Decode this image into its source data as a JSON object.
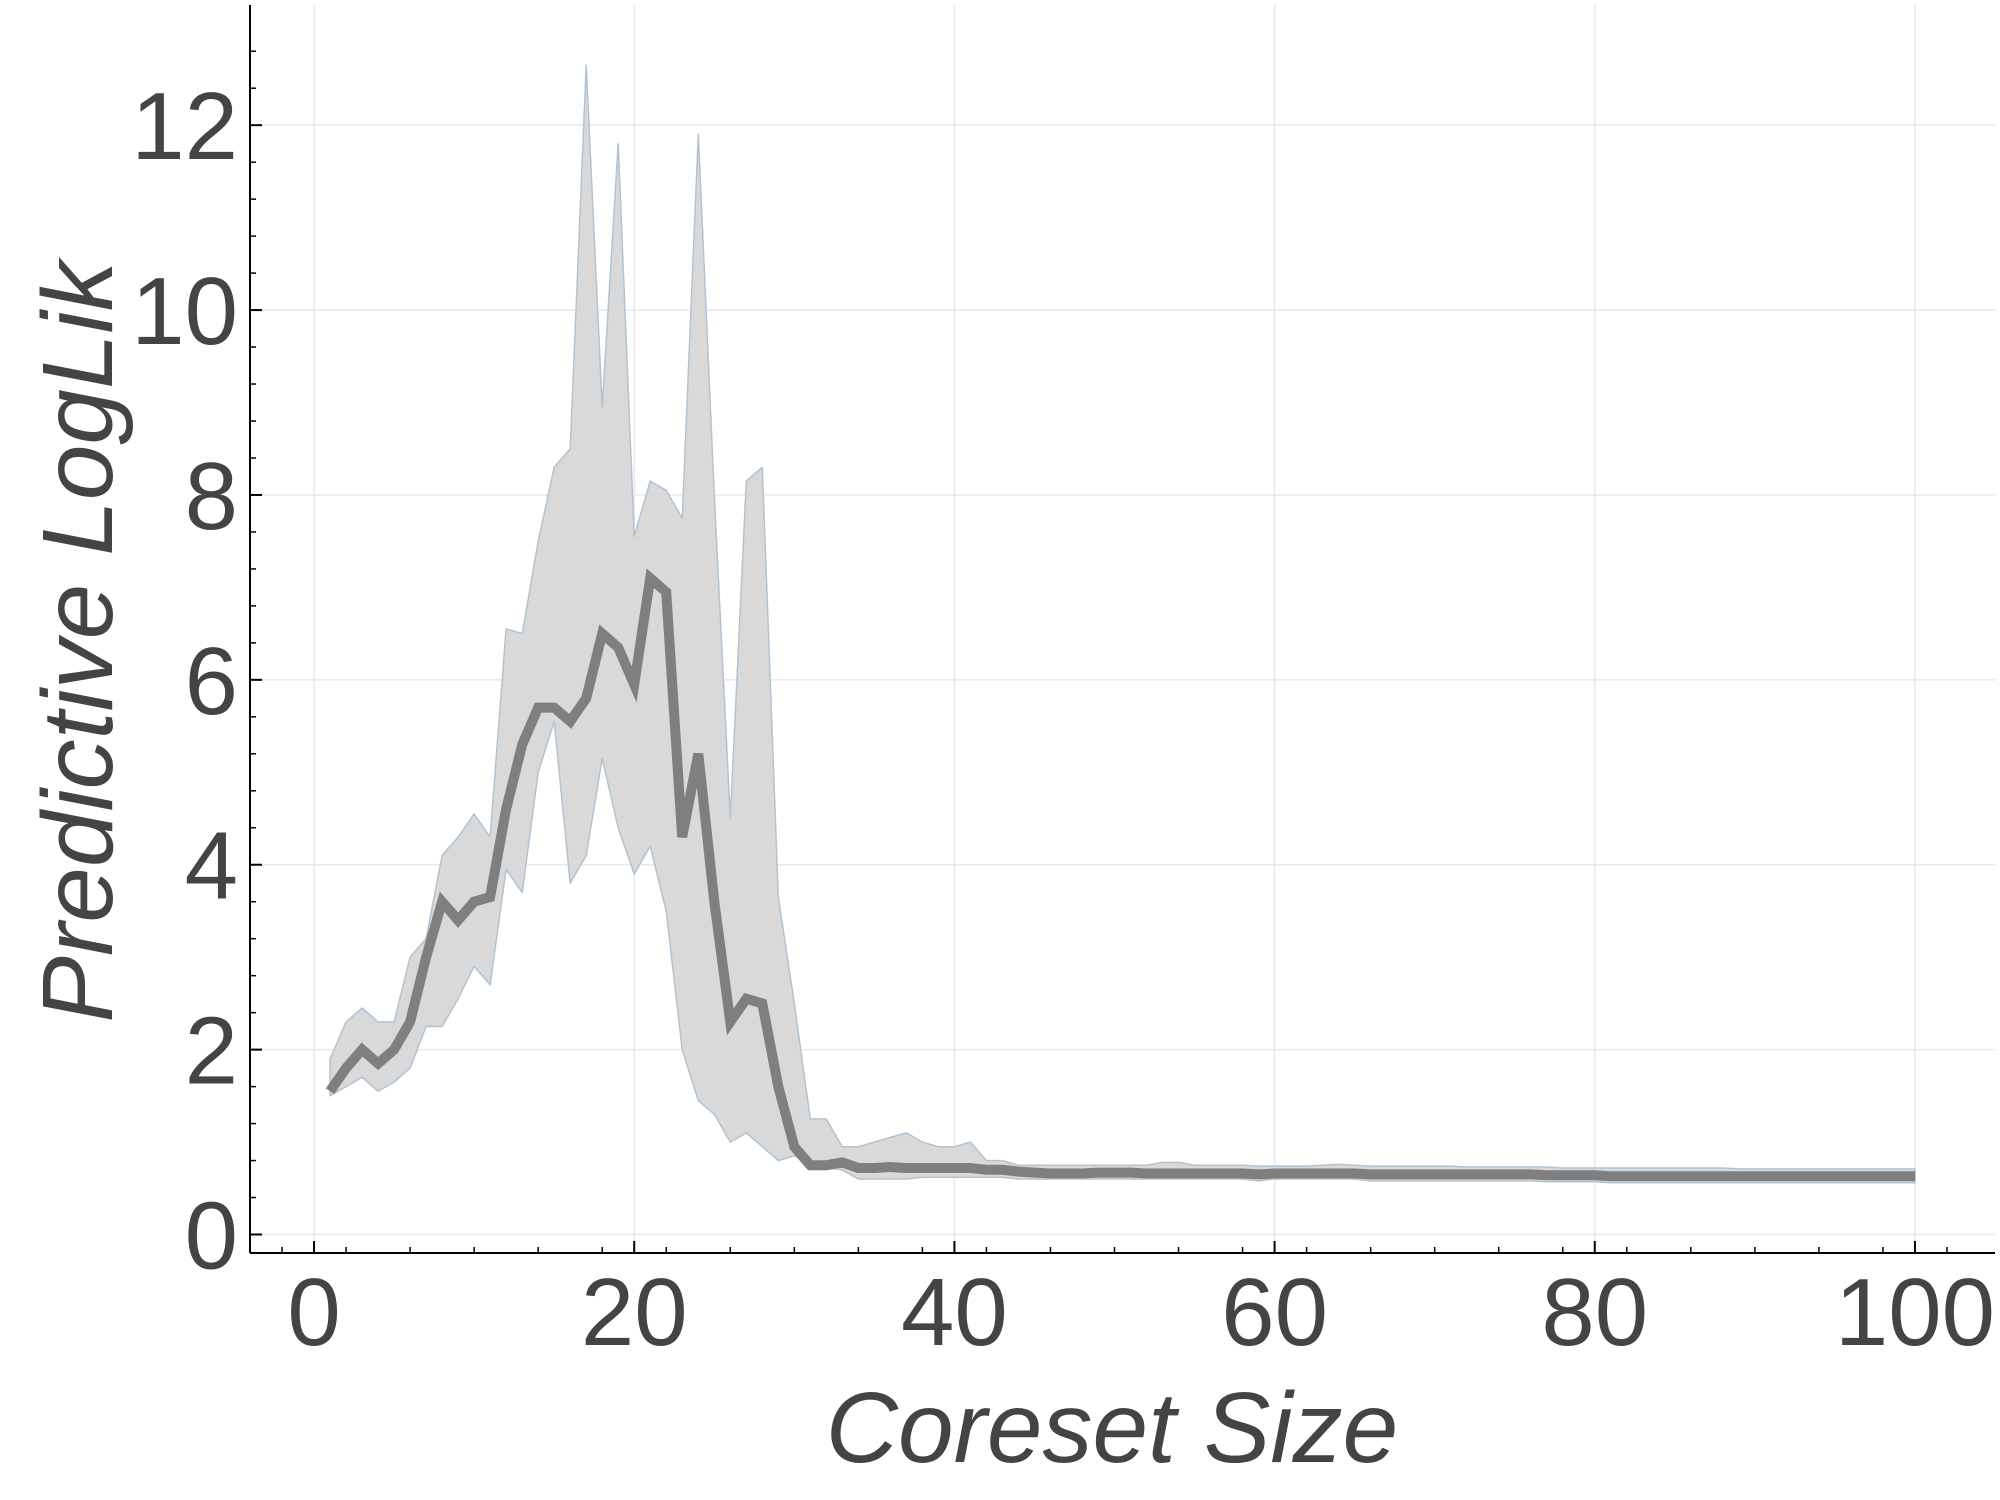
{
  "chart_data": {
    "type": "line",
    "title": "",
    "xlabel": "Coreset Size",
    "ylabel": "Predictive LogLik",
    "xlim": [
      -4,
      105
    ],
    "ylim": [
      -0.2,
      13.3
    ],
    "xticks": [
      0,
      20,
      40,
      60,
      80,
      100
    ],
    "yticks": [
      0,
      2,
      4,
      6,
      8,
      10,
      12
    ],
    "grid": true,
    "legend": "none",
    "colors": {
      "line": "#7f7f7f",
      "band": "#d9d9d9",
      "band_edge": "#b0c4d4",
      "grid": "#e6e8ec",
      "text": "#444444",
      "axis": "#000000"
    },
    "series": [
      {
        "x": [
          1,
          2,
          3,
          4,
          5,
          6,
          7,
          8,
          9,
          10,
          11,
          12,
          13,
          14,
          15,
          16,
          17,
          18,
          19,
          20,
          21,
          22,
          23,
          24,
          25,
          26,
          27,
          28,
          29,
          30,
          31,
          32,
          33,
          34,
          35,
          36,
          37,
          38,
          39,
          40,
          41,
          42,
          43,
          44,
          45,
          46,
          47,
          48,
          49,
          50,
          51,
          52,
          53,
          54,
          55,
          56,
          57,
          58,
          59,
          60,
          61,
          62,
          63,
          64,
          65,
          66,
          67,
          68,
          69,
          70,
          71,
          72,
          73,
          74,
          75,
          76,
          77,
          78,
          79,
          80,
          81,
          82,
          83,
          84,
          85,
          86,
          87,
          88,
          89,
          90,
          91,
          92,
          93,
          94,
          95,
          96,
          97,
          98,
          99,
          100
        ],
        "mean": [
          1.55,
          1.8,
          2.0,
          1.85,
          2.0,
          2.3,
          3.0,
          3.6,
          3.4,
          3.6,
          3.65,
          4.6,
          5.3,
          5.7,
          5.7,
          5.55,
          5.8,
          6.5,
          6.35,
          5.95,
          7.1,
          6.95,
          4.3,
          5.2,
          3.6,
          2.3,
          2.55,
          2.5,
          1.6,
          0.95,
          0.75,
          0.75,
          0.78,
          0.72,
          0.72,
          0.73,
          0.72,
          0.72,
          0.72,
          0.72,
          0.72,
          0.7,
          0.7,
          0.68,
          0.67,
          0.66,
          0.66,
          0.66,
          0.67,
          0.67,
          0.67,
          0.66,
          0.66,
          0.66,
          0.66,
          0.66,
          0.66,
          0.66,
          0.65,
          0.66,
          0.66,
          0.66,
          0.66,
          0.66,
          0.66,
          0.65,
          0.65,
          0.65,
          0.65,
          0.65,
          0.65,
          0.65,
          0.65,
          0.65,
          0.65,
          0.65,
          0.64,
          0.64,
          0.64,
          0.64,
          0.63,
          0.63,
          0.63,
          0.63,
          0.63,
          0.63,
          0.63,
          0.63,
          0.63,
          0.63,
          0.63,
          0.63,
          0.63,
          0.63,
          0.63,
          0.63,
          0.63,
          0.63,
          0.63,
          0.63
        ],
        "lower": [
          1.5,
          1.6,
          1.7,
          1.55,
          1.65,
          1.8,
          2.25,
          2.25,
          2.55,
          2.9,
          2.7,
          3.95,
          3.7,
          5.0,
          5.55,
          3.8,
          4.1,
          5.15,
          4.4,
          3.9,
          4.2,
          3.5,
          2.0,
          1.45,
          1.3,
          1.0,
          1.1,
          0.95,
          0.8,
          0.85,
          0.75,
          0.72,
          0.7,
          0.6,
          0.6,
          0.6,
          0.6,
          0.62,
          0.62,
          0.62,
          0.62,
          0.62,
          0.62,
          0.6,
          0.6,
          0.6,
          0.6,
          0.6,
          0.6,
          0.6,
          0.6,
          0.6,
          0.6,
          0.6,
          0.6,
          0.6,
          0.6,
          0.6,
          0.58,
          0.6,
          0.6,
          0.6,
          0.6,
          0.6,
          0.6,
          0.58,
          0.58,
          0.58,
          0.58,
          0.58,
          0.58,
          0.58,
          0.58,
          0.58,
          0.58,
          0.58,
          0.57,
          0.57,
          0.57,
          0.57,
          0.56,
          0.56,
          0.56,
          0.56,
          0.56,
          0.56,
          0.56,
          0.56,
          0.56,
          0.56,
          0.56,
          0.56,
          0.56,
          0.56,
          0.56,
          0.56,
          0.56,
          0.56,
          0.56,
          0.56
        ],
        "upper": [
          1.9,
          2.3,
          2.45,
          2.3,
          2.3,
          3.0,
          3.2,
          4.1,
          4.3,
          4.55,
          4.3,
          6.55,
          6.5,
          7.5,
          8.3,
          8.5,
          12.65,
          8.95,
          11.8,
          7.55,
          8.15,
          8.05,
          7.75,
          11.9,
          8.0,
          4.5,
          8.15,
          8.3,
          3.65,
          2.5,
          1.25,
          1.25,
          0.95,
          0.95,
          1.0,
          1.05,
          1.1,
          1.0,
          0.95,
          0.95,
          1.0,
          0.8,
          0.8,
          0.75,
          0.75,
          0.75,
          0.75,
          0.75,
          0.75,
          0.75,
          0.75,
          0.75,
          0.78,
          0.78,
          0.75,
          0.75,
          0.75,
          0.75,
          0.74,
          0.74,
          0.74,
          0.74,
          0.75,
          0.76,
          0.75,
          0.74,
          0.74,
          0.74,
          0.74,
          0.74,
          0.74,
          0.73,
          0.73,
          0.73,
          0.73,
          0.73,
          0.73,
          0.72,
          0.72,
          0.72,
          0.72,
          0.72,
          0.72,
          0.72,
          0.72,
          0.72,
          0.72,
          0.72,
          0.71,
          0.71,
          0.71,
          0.71,
          0.71,
          0.71,
          0.71,
          0.71,
          0.71,
          0.71,
          0.71,
          0.71
        ]
      }
    ]
  }
}
